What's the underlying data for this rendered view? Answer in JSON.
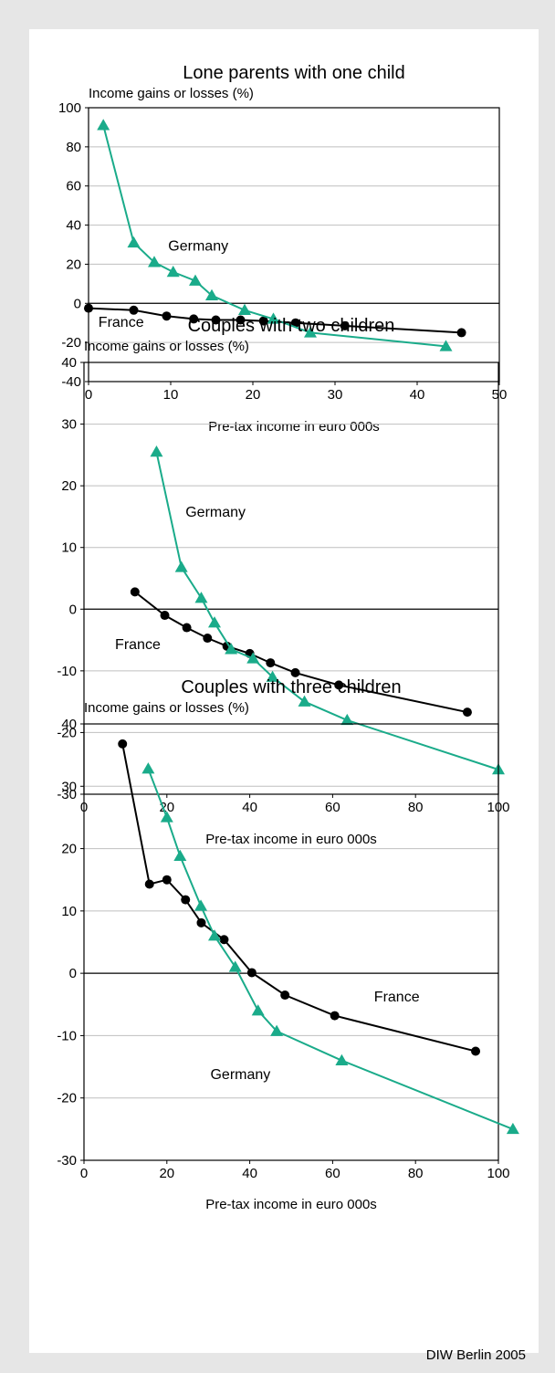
{
  "source": "DIW Berlin 2005",
  "charts": [
    {
      "type": "line",
      "title": "Lone parents with one child",
      "ylabel": "Income gains or losses (%)",
      "xlabel": "Pre-tax income in euro 000s",
      "xlim": [
        0,
        50
      ],
      "ylim": [
        -40,
        100
      ],
      "xticks": [
        0,
        10,
        20,
        30,
        40,
        50
      ],
      "yticks": [
        -40,
        -20,
        0,
        20,
        40,
        60,
        80,
        100
      ],
      "grid": true,
      "series": [
        {
          "name": "France",
          "marker": "circle",
          "color": "#000000",
          "x": [
            0,
            5.5,
            9.5,
            12.8,
            15.5,
            18.5,
            21.3,
            25.2,
            31.2,
            45.4
          ],
          "y": [
            -2.5,
            -3.5,
            -6.5,
            -8,
            -8.5,
            -8.5,
            -9,
            -10,
            -11.5,
            -15
          ]
        },
        {
          "name": "Germany",
          "marker": "triangle",
          "color": "#1aab8a",
          "x": [
            1.8,
            5.5,
            8.0,
            10.3,
            13.0,
            15.0,
            19.0,
            22.5,
            27.0,
            43.5
          ],
          "y": [
            91,
            31,
            21,
            16,
            11.5,
            4,
            -3.5,
            -8,
            -15,
            -22
          ]
        }
      ],
      "labels": [
        {
          "text": "Germany",
          "x": 9.7,
          "y": 27
        },
        {
          "text": "France",
          "x": 1.2,
          "y": -12
        }
      ]
    },
    {
      "type": "line",
      "title": "Couples with two children",
      "ylabel": "Income gains or losses (%)",
      "xlabel": "Pre-tax income in euro 000s",
      "xlim": [
        0,
        100
      ],
      "ylim": [
        -30,
        40
      ],
      "xticks": [
        0,
        20,
        40,
        60,
        80,
        100
      ],
      "yticks": [
        -30,
        -20,
        -10,
        0,
        10,
        20,
        30,
        40
      ],
      "grid": true,
      "series": [
        {
          "name": "France",
          "marker": "circle",
          "color": "#000000",
          "x": [
            12.3,
            19.5,
            24.8,
            29.8,
            34.5,
            40.0,
            45.0,
            51.0,
            61.5,
            92.5
          ],
          "y": [
            2.8,
            -1.0,
            -3.0,
            -4.7,
            -6.0,
            -7.2,
            -8.7,
            -10.3,
            -12.3,
            -16.7
          ]
        },
        {
          "name": "Germany",
          "marker": "triangle",
          "color": "#1aab8a",
          "x": [
            17.5,
            23.5,
            28.3,
            31.5,
            35.5,
            40.8,
            45.5,
            53.2,
            63.5,
            100.0
          ],
          "y": [
            25.5,
            6.8,
            1.8,
            -2.2,
            -6.5,
            -8.0,
            -11.0,
            -15.0,
            -18.0,
            -26.0
          ]
        }
      ],
      "labels": [
        {
          "text": "Germany",
          "x": 24.5,
          "y": 15
        },
        {
          "text": "France",
          "x": 7.5,
          "y": -6.5
        }
      ]
    },
    {
      "type": "line",
      "title": "Couples with three children",
      "ylabel": "Income gains or losses (%)",
      "xlabel": "Pre-tax income in euro 000s",
      "xlim": [
        0,
        100
      ],
      "ylim": [
        -30,
        40
      ],
      "xticks": [
        0,
        20,
        40,
        60,
        80,
        100
      ],
      "yticks": [
        -30,
        -20,
        -10,
        0,
        10,
        20,
        30,
        40
      ],
      "grid": true,
      "series": [
        {
          "name": "France",
          "marker": "circle",
          "color": "#000000",
          "x": [
            9.3,
            15.8,
            20.0,
            24.5,
            28.3,
            33.8,
            40.5,
            48.5,
            60.5,
            94.5
          ],
          "y": [
            36.8,
            14.3,
            15.0,
            11.8,
            8.1,
            5.4,
            0.1,
            -3.5,
            -6.8,
            -12.5
          ]
        },
        {
          "name": "Germany",
          "marker": "triangle",
          "color": "#1aab8a",
          "x": [
            15.5,
            20.0,
            23.2,
            28.2,
            31.5,
            36.5,
            42.0,
            46.5,
            62.2,
            103.5
          ],
          "y": [
            32.8,
            25.0,
            18.8,
            10.8,
            6.0,
            1.0,
            -6.0,
            -9.3,
            -14.0,
            -25.0
          ]
        }
      ],
      "labels": [
        {
          "text": "France",
          "x": 70,
          "y": -4.5
        },
        {
          "text": "Germany",
          "x": 30.5,
          "y": -17
        }
      ]
    }
  ],
  "chart_data": [
    {
      "type": "line",
      "title": "Lone parents with one child",
      "xlabel": "Pre-tax income in euro 000s",
      "ylabel": "Income gains or losses (%)",
      "xlim": [
        0,
        50
      ],
      "ylim": [
        -40,
        100
      ],
      "series": [
        {
          "name": "France",
          "x": [
            0,
            5.5,
            9.5,
            12.8,
            15.5,
            18.5,
            21.3,
            25.2,
            31.2,
            45.4
          ],
          "y": [
            -2.5,
            -3.5,
            -6.5,
            -8,
            -8.5,
            -8.5,
            -9,
            -10,
            -11.5,
            -15
          ]
        },
        {
          "name": "Germany",
          "x": [
            1.8,
            5.5,
            8.0,
            10.3,
            13.0,
            15.0,
            19.0,
            22.5,
            27.0,
            43.5
          ],
          "y": [
            91,
            31,
            21,
            16,
            11.5,
            4,
            -3.5,
            -8,
            -15,
            -22
          ]
        }
      ]
    },
    {
      "type": "line",
      "title": "Couples with two children",
      "xlabel": "Pre-tax income in euro 000s",
      "ylabel": "Income gains or losses (%)",
      "xlim": [
        0,
        100
      ],
      "ylim": [
        -30,
        40
      ],
      "series": [
        {
          "name": "France",
          "x": [
            12.3,
            19.5,
            24.8,
            29.8,
            34.5,
            40.0,
            45.0,
            51.0,
            61.5,
            92.5
          ],
          "y": [
            2.8,
            -1.0,
            -3.0,
            -4.7,
            -6.0,
            -7.2,
            -8.7,
            -10.3,
            -12.3,
            -16.7
          ]
        },
        {
          "name": "Germany",
          "x": [
            17.5,
            23.5,
            28.3,
            31.5,
            35.5,
            40.8,
            45.5,
            53.2,
            63.5,
            100.0
          ],
          "y": [
            25.5,
            6.8,
            1.8,
            -2.2,
            -6.5,
            -8.0,
            -11.0,
            -15.0,
            -18.0,
            -26.0
          ]
        }
      ]
    },
    {
      "type": "line",
      "title": "Couples with three children",
      "xlabel": "Pre-tax income in euro 000s",
      "ylabel": "Income gains or losses (%)",
      "xlim": [
        0,
        100
      ],
      "ylim": [
        -30,
        40
      ],
      "series": [
        {
          "name": "France",
          "x": [
            9.3,
            15.8,
            20.0,
            24.5,
            28.3,
            33.8,
            40.5,
            48.5,
            60.5,
            94.5
          ],
          "y": [
            36.8,
            14.3,
            15.0,
            11.8,
            8.1,
            5.4,
            0.1,
            -3.5,
            -6.8,
            -12.5
          ]
        },
        {
          "name": "Germany",
          "x": [
            15.5,
            20.0,
            23.2,
            28.2,
            31.5,
            36.5,
            42.0,
            46.5,
            62.2,
            103.5
          ],
          "y": [
            32.8,
            25.0,
            18.8,
            10.8,
            6.0,
            1.0,
            -6.0,
            -9.3,
            -14.0,
            -25.0
          ]
        }
      ]
    }
  ]
}
